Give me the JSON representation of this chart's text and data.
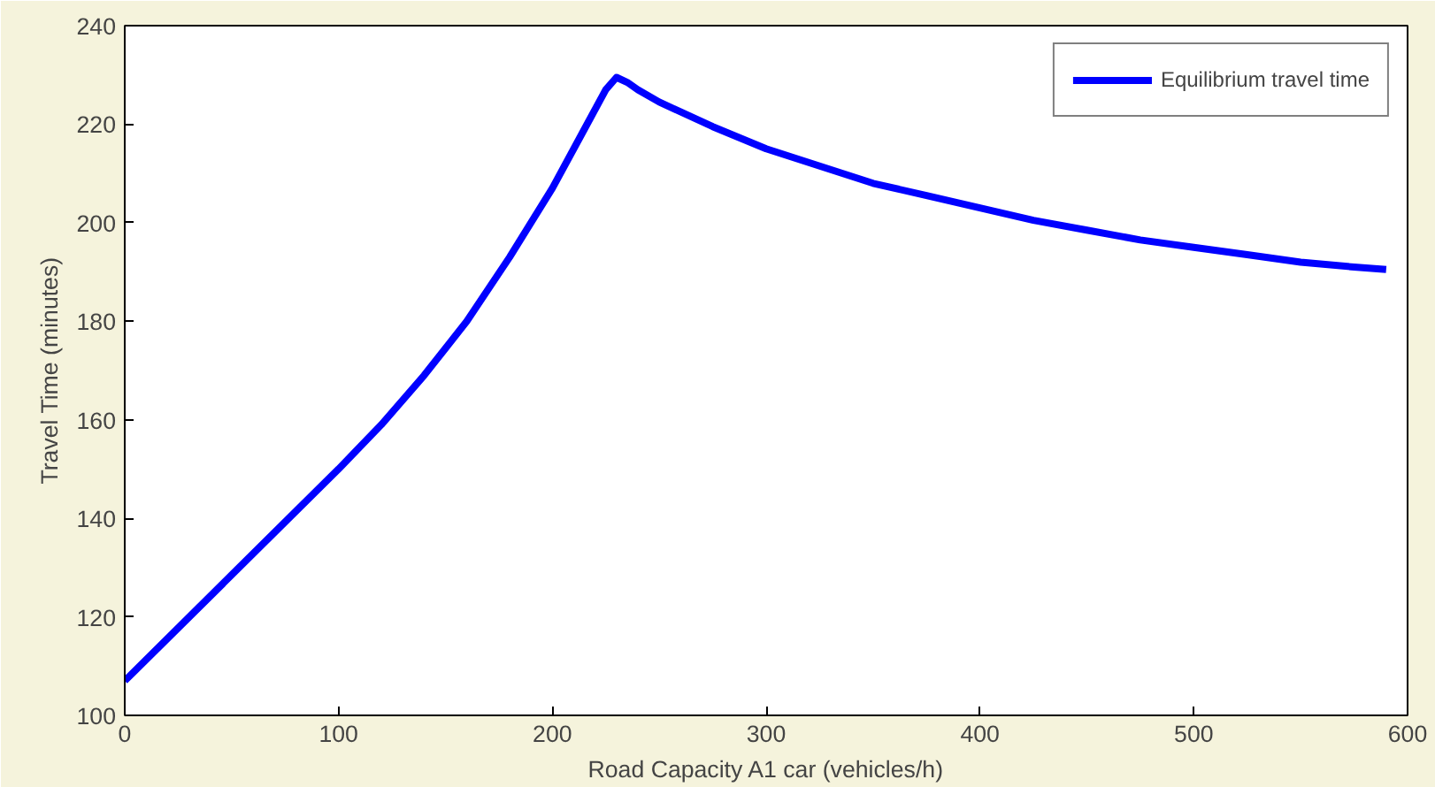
{
  "chart_data": {
    "type": "line",
    "xlabel": "Road Capacity A1 car (vehicles/h)",
    "ylabel": "Travel Time (minutes)",
    "x": [
      0,
      50,
      100,
      120,
      140,
      160,
      180,
      200,
      215,
      225,
      230,
      235,
      240,
      250,
      275,
      300,
      325,
      350,
      375,
      400,
      425,
      450,
      475,
      500,
      525,
      550,
      575,
      590
    ],
    "series": [
      {
        "name": "Equilibrium travel time",
        "color": "#0000ff",
        "values": [
          107,
          128.5,
          150,
          159,
          169,
          180,
          193,
          207,
          219,
          227,
          229.5,
          228.5,
          227,
          224.5,
          219.5,
          215,
          211.5,
          208,
          205.5,
          203,
          200.5,
          198.5,
          196.5,
          195,
          193.5,
          192,
          191,
          190.5
        ]
      }
    ],
    "xlim": [
      0,
      600
    ],
    "ylim": [
      100,
      240
    ],
    "xticks": [
      0,
      100,
      200,
      300,
      400,
      500,
      600
    ],
    "yticks": [
      100,
      120,
      140,
      160,
      180,
      200,
      220,
      240
    ],
    "grid": false,
    "legend": "top right",
    "marker": "none",
    "line_style": "solid"
  }
}
